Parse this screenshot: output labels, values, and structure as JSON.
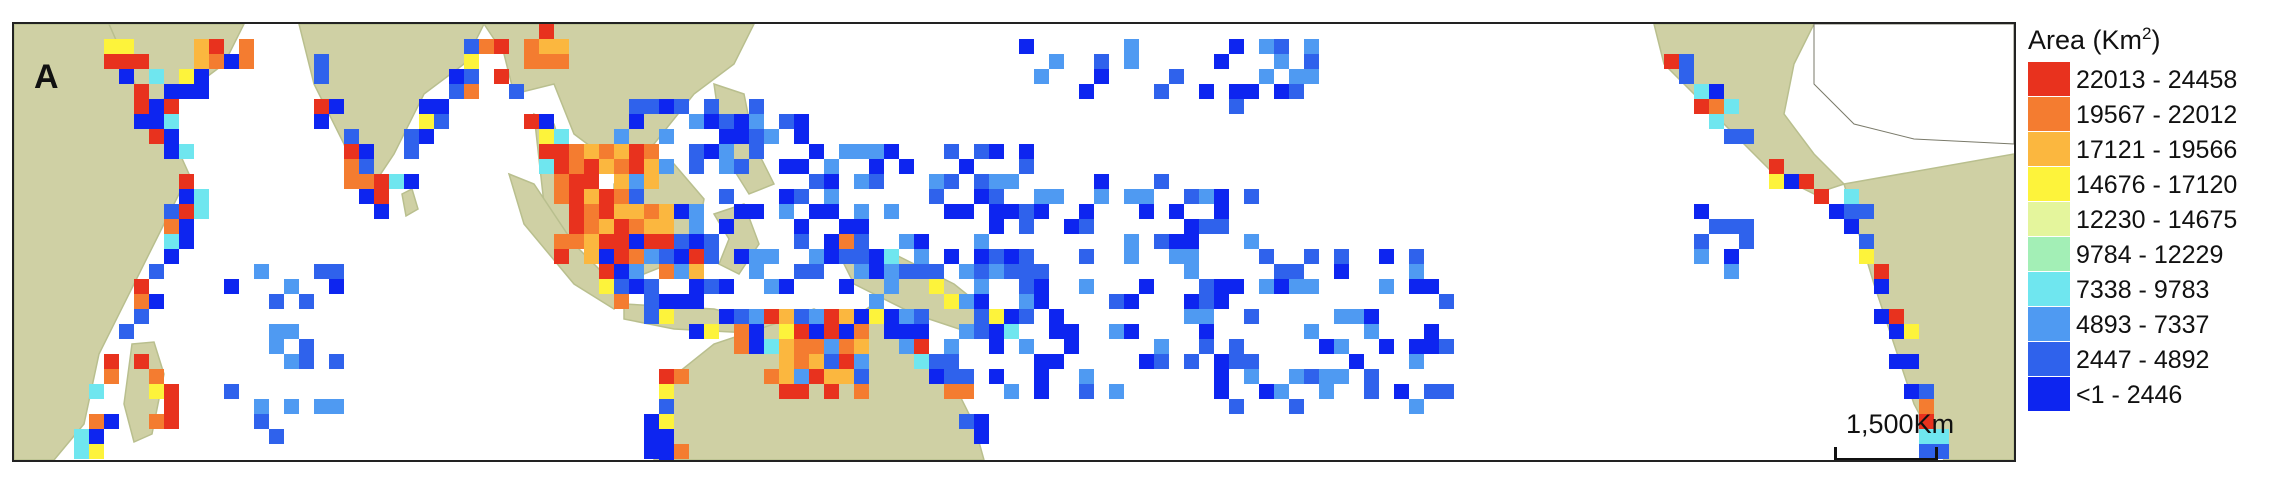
{
  "panel_label": "A",
  "scale_bar": {
    "label": "1,500Km"
  },
  "legend": {
    "title": "Area (Km",
    "title_superscript": "2",
    "title_suffix": ")",
    "classes": [
      {
        "label": "22013 - 24458",
        "color": "#e8321e"
      },
      {
        "label": "19567 - 22012",
        "color": "#f47c30"
      },
      {
        "label": "17121 - 19566",
        "color": "#fbb73f"
      },
      {
        "label": "14676 - 17120",
        "color": "#fdf33b"
      },
      {
        "label": "12230 - 14675",
        "color": "#e4f59c"
      },
      {
        "label": "9784 - 12229",
        "color": "#a3efb6"
      },
      {
        "label": "7338 - 9783",
        "color": "#6fe6ef"
      },
      {
        "label": "4893 - 7337",
        "color": "#4f9af2"
      },
      {
        "label": "2447 - 4892",
        "color": "#2f62ec"
      },
      {
        "label": "<1 - 2446",
        "color": "#0d25f0"
      }
    ]
  },
  "colors": {
    "land": "#cfd0a4",
    "land_dark": "#b9bf8e",
    "ocean": "#ffffff",
    "frame": "#222222"
  }
}
